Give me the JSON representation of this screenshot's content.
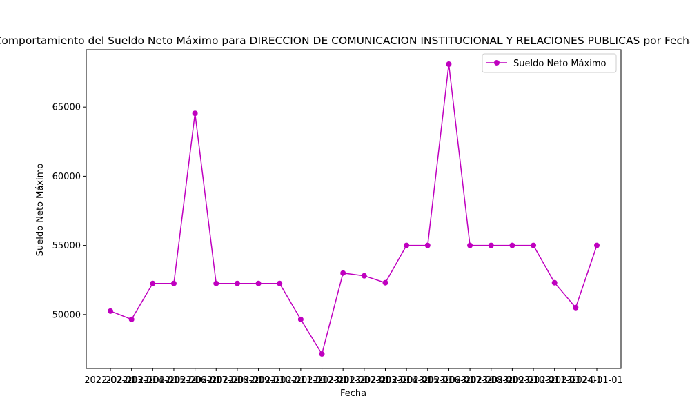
{
  "chart_data": {
    "type": "line",
    "title": "Comportamiento del Sueldo Neto Máximo para DIRECCION DE COMUNICACION INSTITUCIONAL Y RELACIONES PUBLICAS por Fecha",
    "xlabel": "Fecha",
    "ylabel": "Sueldo Neto Máximo",
    "x": [
      "2022-02-01",
      "2022-03-01",
      "2022-04-01",
      "2022-05-01",
      "2022-06-01",
      "2022-07-01",
      "2022-08-01",
      "2022-09-01",
      "2022-10-01",
      "2022-11-01",
      "2022-12-01",
      "2023-01-01",
      "2023-02-01",
      "2023-03-01",
      "2023-04-01",
      "2023-05-01",
      "2023-06-01",
      "2023-07-01",
      "2023-08-01",
      "2023-09-01",
      "2023-10-01",
      "2023-11-01",
      "2023-12-01",
      "2024-01-01"
    ],
    "series": [
      {
        "name": "Sueldo Neto Máximo",
        "color": "#bf00bf",
        "marker": "circle",
        "values": [
          50250,
          49650,
          52250,
          52250,
          64550,
          52250,
          52250,
          52250,
          52250,
          49650,
          47150,
          53000,
          52800,
          52300,
          55000,
          55000,
          68100,
          55000,
          55000,
          55000,
          55000,
          52300,
          50500,
          55000
        ]
      }
    ],
    "yticks": [
      50000,
      55000,
      60000,
      65000
    ],
    "ytick_labels": [
      "50000",
      "55000",
      "60000",
      "65000"
    ],
    "ylim": [
      46100,
      69150
    ],
    "grid": false,
    "legend_position": "top-right"
  }
}
